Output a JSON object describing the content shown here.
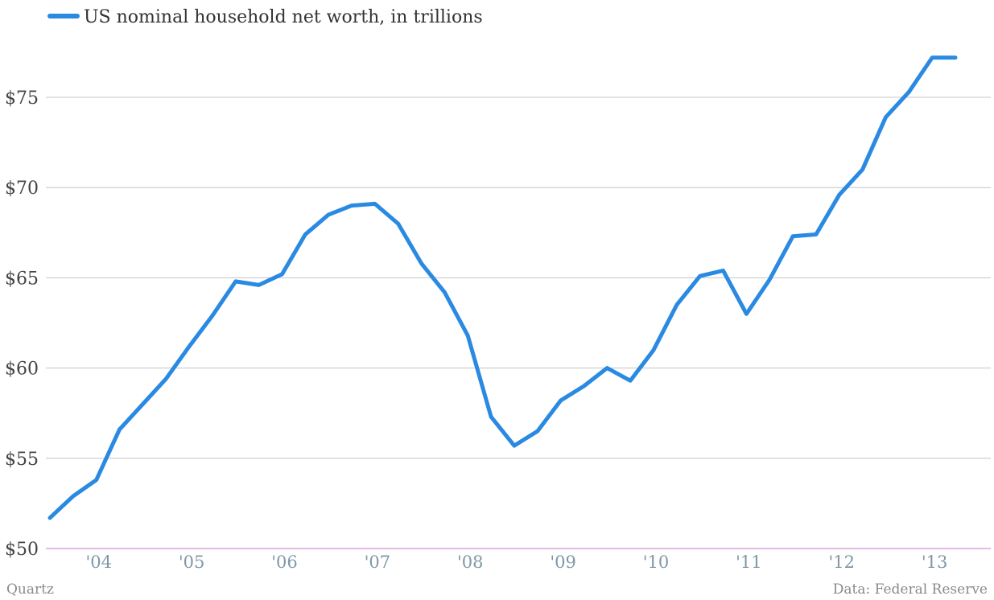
{
  "footer": {
    "source": "Quartz",
    "credit": "Data: Federal Reserve"
  },
  "chart_data": {
    "type": "line",
    "xlabel": "",
    "ylabel": "",
    "ylim": [
      50,
      78
    ],
    "y_ticks": [
      {
        "value": 50,
        "label": "$50"
      },
      {
        "value": 55,
        "label": "$55"
      },
      {
        "value": 60,
        "label": "$60"
      },
      {
        "value": 65,
        "label": "$65"
      },
      {
        "value": 70,
        "label": "$70"
      },
      {
        "value": 75,
        "label": "$75"
      }
    ],
    "x_ticks": [
      {
        "value": 2004,
        "label": "'04"
      },
      {
        "value": 2005,
        "label": "'05"
      },
      {
        "value": 2006,
        "label": "'06"
      },
      {
        "value": 2007,
        "label": "'07"
      },
      {
        "value": 2008,
        "label": "'08"
      },
      {
        "value": 2009,
        "label": "'09"
      },
      {
        "value": 2010,
        "label": "'10"
      },
      {
        "value": 2011,
        "label": "'11"
      },
      {
        "value": 2012,
        "label": "'12"
      },
      {
        "value": 2013,
        "label": "'13"
      }
    ],
    "grid": true,
    "legend": "top-left",
    "colors": {
      "line": "#2a8ae2",
      "grid": "#c4c4c4",
      "baseline": "#cc77cc"
    },
    "series": [
      {
        "name": "US nominal household net worth, in trillions",
        "x": [
          2003.5,
          2003.75,
          2004.0,
          2004.25,
          2004.5,
          2004.75,
          2005.0,
          2005.25,
          2005.5,
          2005.75,
          2006.0,
          2006.25,
          2006.5,
          2006.75,
          2007.0,
          2007.25,
          2007.5,
          2007.75,
          2008.0,
          2008.25,
          2008.5,
          2008.75,
          2009.0,
          2009.25,
          2009.5,
          2009.75,
          2010.0,
          2010.25,
          2010.5,
          2010.75,
          2011.0,
          2011.25,
          2011.5,
          2011.75,
          2012.0,
          2012.25,
          2012.5,
          2012.75,
          2013.0,
          2013.25
        ],
        "values": [
          51.7,
          52.9,
          53.8,
          56.6,
          58.0,
          59.4,
          61.2,
          62.9,
          64.8,
          64.6,
          65.2,
          67.4,
          68.5,
          69.0,
          69.1,
          68.0,
          65.8,
          64.2,
          61.8,
          57.3,
          55.7,
          56.5,
          58.2,
          59.0,
          60.0,
          59.3,
          61.0,
          63.5,
          65.1,
          65.4,
          63.0,
          64.9,
          67.3,
          67.4,
          69.6,
          71.0,
          73.9,
          75.3,
          77.2,
          77.2
        ]
      }
    ]
  }
}
